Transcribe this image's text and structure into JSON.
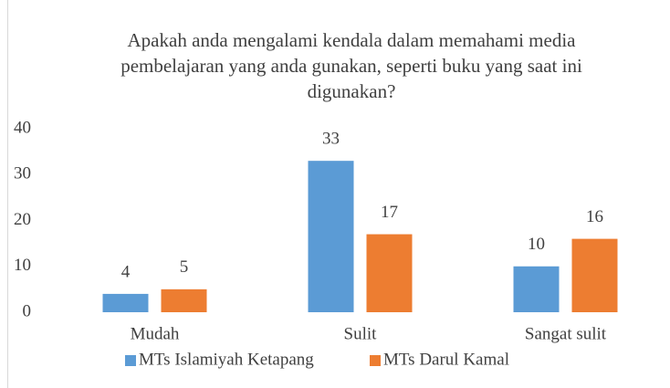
{
  "chart_data": {
    "type": "bar",
    "title": "Apakah anda mengalami kendala dalam memahami media pembelajaran yang anda gunakan, seperti buku yang saat ini digunakan?",
    "categories": [
      "Mudah",
      "Sulit",
      "Sangat sulit"
    ],
    "series": [
      {
        "name": "MTs Islamiyah Ketapang",
        "color": "#5b9bd5",
        "values": [
          4,
          33,
          10
        ]
      },
      {
        "name": "MTs Darul Kamal",
        "color": "#ed7d31",
        "values": [
          5,
          17,
          16
        ]
      }
    ],
    "ylim": [
      0,
      40
    ],
    "yticks": [
      0,
      10,
      20,
      30,
      40
    ],
    "grid": false,
    "legend": "bottom"
  }
}
